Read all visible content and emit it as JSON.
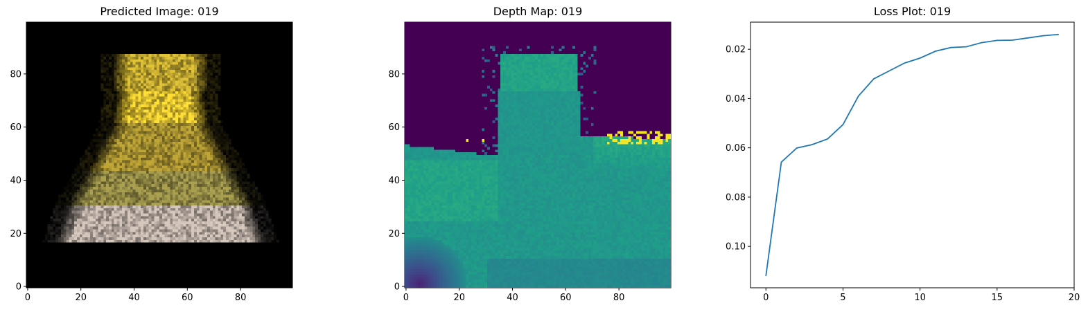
{
  "chart_data": [
    {
      "type": "heatmap",
      "title": "Predicted Image: 019",
      "xlim": [
        -0.5,
        99.5
      ],
      "ylim": [
        99.5,
        -0.5
      ],
      "xticks": [
        0,
        20,
        40,
        60,
        80
      ],
      "yticks": [
        0,
        20,
        40,
        60,
        80
      ],
      "colors": {
        "background": "#000000",
        "yellow": "#e0c83a",
        "pale": "#d8ccc4"
      }
    },
    {
      "type": "heatmap",
      "title": "Depth Map: 019",
      "xlim": [
        -0.5,
        99.5
      ],
      "ylim": [
        99.5,
        -0.5
      ],
      "xticks": [
        0,
        20,
        40,
        60,
        80
      ],
      "yticks": [
        0,
        20,
        40,
        60,
        80
      ],
      "colormap": "viridis"
    },
    {
      "type": "line",
      "title": "Loss Plot: 019",
      "x": [
        0,
        1,
        2,
        3,
        4,
        5,
        6,
        7,
        8,
        9,
        10,
        11,
        12,
        13,
        14,
        15,
        16,
        17,
        18,
        19
      ],
      "series": [
        {
          "values": [
            0.112,
            0.0658,
            0.0601,
            0.0587,
            0.0564,
            0.0506,
            0.039,
            0.032,
            0.0288,
            0.0256,
            0.0236,
            0.0208,
            0.0193,
            0.019,
            0.0173,
            0.0164,
            0.0163,
            0.0154,
            0.0145,
            0.014
          ],
          "color": "#1f77b4"
        }
      ],
      "xlim": [
        -1,
        20
      ],
      "ylim": [
        0.009,
        0.1168
      ],
      "xticks": [
        0,
        5,
        10,
        15,
        20
      ],
      "yticks": [
        0.02,
        0.04,
        0.06,
        0.08,
        0.1
      ],
      "ytick_labels": [
        "0.02",
        "0.04",
        "0.06",
        "0.08",
        "0.10"
      ]
    }
  ]
}
